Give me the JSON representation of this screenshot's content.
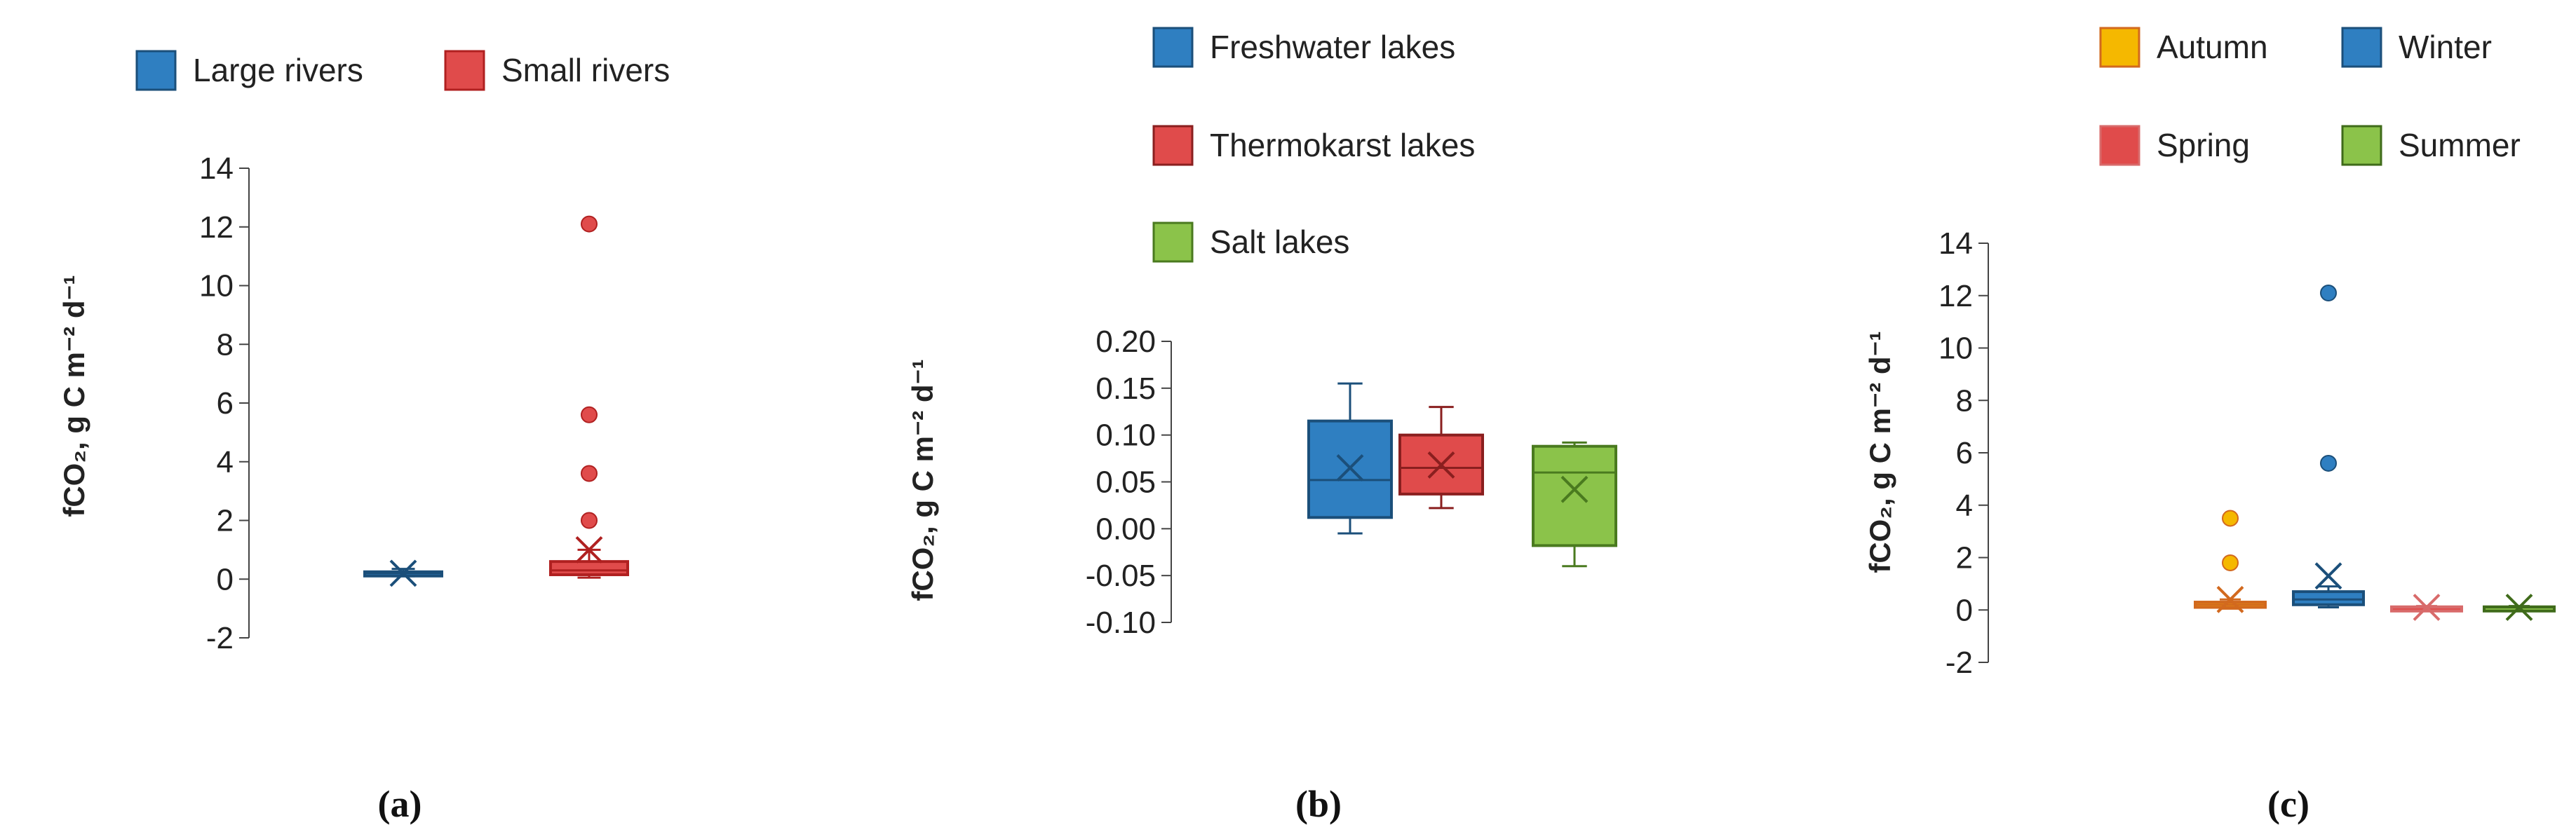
{
  "chart_data": [
    {
      "type": "box",
      "panel_label": "(a)",
      "ylabel": "fCO₂, g C m⁻² d⁻¹",
      "ylim": [
        -2,
        14
      ],
      "yticks": [
        "14",
        "12",
        "10",
        "8",
        "6",
        "4",
        "2",
        "0",
        "-2"
      ],
      "legend": {
        "placement": "top"
      },
      "series": [
        {
          "name": "Large rivers",
          "color": "#2f7fc1",
          "edge": "#1b4f7a",
          "whisker_low": 0.1,
          "q1": 0.15,
          "median": 0.2,
          "q3": 0.25,
          "whisker_high": 0.35,
          "mean": 0.2,
          "outliers": []
        },
        {
          "name": "Small rivers",
          "color": "#e04b4b",
          "edge": "#b02020",
          "whisker_low": 0.05,
          "q1": 0.15,
          "median": 0.3,
          "q3": 0.6,
          "whisker_high": 1.0,
          "mean": 1.0,
          "outliers": [
            2.0,
            3.6,
            5.6,
            12.1
          ]
        }
      ]
    },
    {
      "type": "box",
      "panel_label": "(b)",
      "ylabel": "fCO₂, g C m⁻² d⁻¹",
      "ylim": [
        -0.1,
        0.2
      ],
      "yticks": [
        "0.20",
        "0.15",
        "0.10",
        "0.05",
        "0.00",
        "-0.05",
        "-0.10"
      ],
      "legend": {
        "placement": "top-left"
      },
      "series": [
        {
          "name": "Freshwater lakes",
          "color": "#2f7fc1",
          "edge": "#1b4f7a",
          "whisker_low": -0.005,
          "q1": 0.012,
          "median": 0.052,
          "q3": 0.115,
          "whisker_high": 0.155,
          "mean": 0.065,
          "outliers": []
        },
        {
          "name": "Thermokarst lakes",
          "color": "#e04b4b",
          "edge": "#8a1f1f",
          "whisker_low": 0.022,
          "q1": 0.037,
          "median": 0.065,
          "q3": 0.1,
          "whisker_high": 0.13,
          "mean": 0.068,
          "outliers": []
        },
        {
          "name": "Salt lakes",
          "color": "#8bc34a",
          "edge": "#4a7a1f",
          "whisker_low": -0.04,
          "q1": -0.018,
          "median": 0.06,
          "q3": 0.088,
          "whisker_high": 0.092,
          "mean": 0.042,
          "outliers": []
        }
      ]
    },
    {
      "type": "box",
      "panel_label": "(c)",
      "ylabel": "fCO₂, g C m⁻² d⁻¹",
      "ylim": [
        -2,
        14
      ],
      "yticks": [
        "14",
        "12",
        "10",
        "8",
        "6",
        "4",
        "2",
        "0",
        "-2"
      ],
      "legend": {
        "placement": "top"
      },
      "series": [
        {
          "name": "Autumn",
          "color": "#f5b800",
          "edge": "#d2691e",
          "whisker_low": 0.05,
          "q1": 0.1,
          "median": 0.2,
          "q3": 0.3,
          "whisker_high": 0.4,
          "mean": 0.4,
          "outliers": [
            1.8,
            3.5
          ]
        },
        {
          "name": "Winter",
          "color": "#2f7fc1",
          "edge": "#1b4f7a",
          "whisker_low": 0.1,
          "q1": 0.2,
          "median": 0.4,
          "q3": 0.7,
          "whisker_high": 0.9,
          "mean": 1.3,
          "outliers": [
            5.6,
            12.1
          ]
        },
        {
          "name": "Spring",
          "color": "#e04b4b",
          "edge": "#d86a6a",
          "whisker_low": 0.05,
          "q1": 0.08,
          "median": 0.1,
          "q3": 0.12,
          "whisker_high": 0.15,
          "mean": 0.1,
          "outliers": []
        },
        {
          "name": "Summer",
          "color": "#8bc34a",
          "edge": "#3f6b1a",
          "whisker_low": 0.05,
          "q1": 0.08,
          "median": 0.1,
          "q3": 0.12,
          "whisker_high": 0.15,
          "mean": 0.1,
          "outliers": []
        }
      ]
    }
  ]
}
